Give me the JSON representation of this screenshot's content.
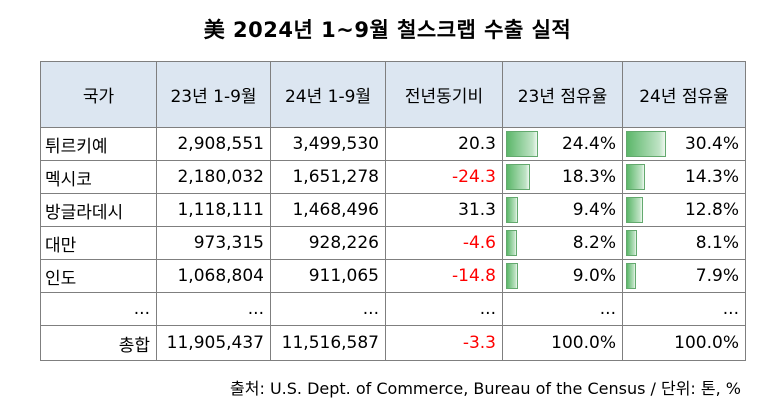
{
  "title": "美 2024년 1~9월 철스크랩 수출 실적",
  "headers": [
    "국가",
    "23년 1-9월",
    "24년 1-9월",
    "전년동기비",
    "23년 점유율",
    "24년 점유율"
  ],
  "rows": [
    {
      "country": "튀르키예",
      "y23": "2,908,551",
      "y24": "3,499,530",
      "yoy": "20.3",
      "share23": "24.4%",
      "share24": "30.4%",
      "share23_value": 24.4,
      "share24_value": 30.4
    },
    {
      "country": "멕시코",
      "y23": "2,180,032",
      "y24": "1,651,278",
      "yoy": "-24.3",
      "share23": "18.3%",
      "share24": "14.3%",
      "share23_value": 18.3,
      "share24_value": 14.3
    },
    {
      "country": "방글라데시",
      "y23": "1,118,111",
      "y24": "1,468,496",
      "yoy": "31.3",
      "share23": "9.4%",
      "share24": "12.8%",
      "share23_value": 9.4,
      "share24_value": 12.8
    },
    {
      "country": "대만",
      "y23": "973,315",
      "y24": "928,226",
      "yoy": "-4.6",
      "share23": "8.2%",
      "share24": "8.1%",
      "share23_value": 8.2,
      "share24_value": 8.1
    },
    {
      "country": "인도",
      "y23": "1,068,804",
      "y24": "911,065",
      "yoy": "-14.8",
      "share23": "9.0%",
      "share24": "7.9%",
      "share23_value": 9.0,
      "share24_value": 7.9
    }
  ],
  "ellipsis": "...",
  "total": {
    "label": "총합",
    "y23": "11,905,437",
    "y24": "11,516,587",
    "yoy": "-3.3",
    "share23": "100.0%",
    "share24": "100.0%"
  },
  "source": "출처: U.S. Dept. of Commerce, Bureau of the Census / 단위: 톤, %",
  "colors": {
    "header_bg": "#dce6f1",
    "negative": "#ff0000",
    "bar": "#5cb76a"
  }
}
